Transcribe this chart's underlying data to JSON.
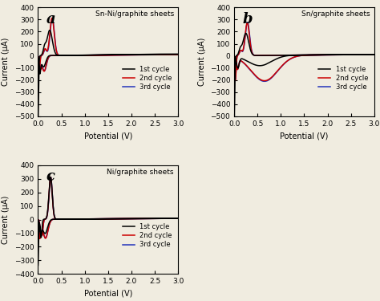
{
  "panels": [
    {
      "label": "a",
      "title": "Sn-Ni/graphite sheets",
      "ylim": [
        -500,
        400
      ],
      "yticks": [
        -500,
        -400,
        -300,
        -200,
        -100,
        0,
        100,
        200,
        300,
        400
      ],
      "ylabel": "Current (μA)"
    },
    {
      "label": "b",
      "title": "Sn/graphite sheets",
      "ylim": [
        -500,
        400
      ],
      "yticks": [
        -500,
        -400,
        -300,
        -200,
        -100,
        0,
        100,
        200,
        300,
        400
      ],
      "ylabel": "Current (μA)"
    },
    {
      "label": "c",
      "title": "Ni/graphite sheets",
      "ylim": [
        -400,
        400
      ],
      "yticks": [
        -400,
        -300,
        -200,
        -100,
        0,
        100,
        200,
        300,
        400
      ],
      "ylabel": "Current (μA)"
    }
  ],
  "xlabel": "Potential (V)",
  "xlim": [
    0,
    3.0
  ],
  "xticks": [
    0.0,
    0.5,
    1.0,
    1.5,
    2.0,
    2.5,
    3.0
  ],
  "colors": [
    "#000000",
    "#cc0000",
    "#2233bb"
  ],
  "legend_labels": [
    "1st cycle",
    "2nd cycle",
    "3rd cycle"
  ],
  "background_color": "#f0ece0",
  "linewidth": 1.1
}
